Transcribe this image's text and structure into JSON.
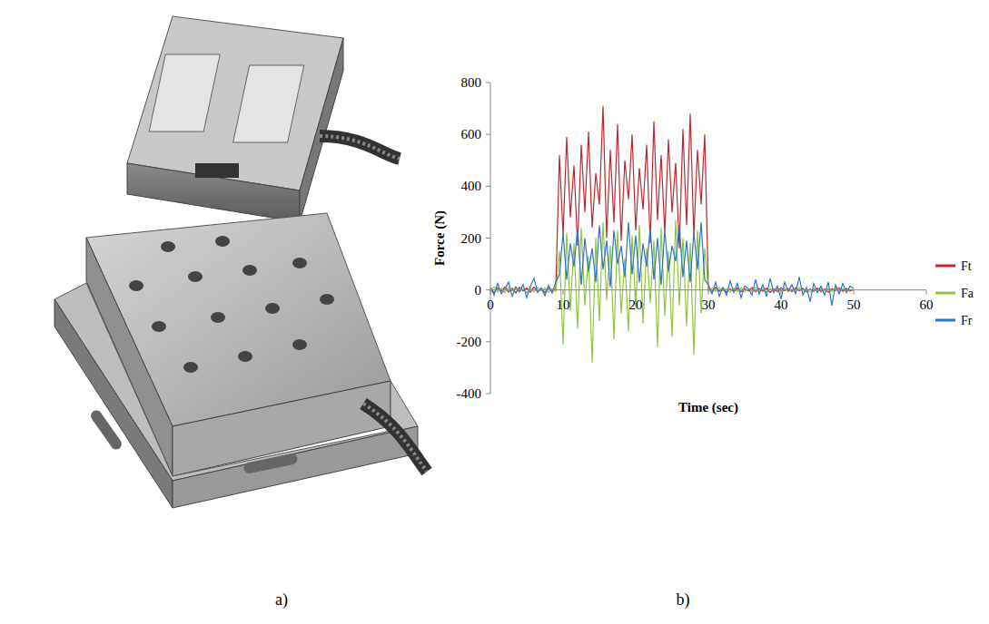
{
  "figure": {
    "panel_labels": [
      "a)",
      "b)"
    ]
  },
  "chart_data": {
    "type": "line",
    "xlabel": "Time (sec)",
    "ylabel": "Force (N)",
    "xlim": [
      0,
      60
    ],
    "ylim": [
      -400,
      800
    ],
    "xticks": [
      0,
      10,
      20,
      30,
      40,
      50,
      60
    ],
    "yticks": [
      -400,
      -200,
      0,
      200,
      400,
      600,
      800
    ],
    "grid": false,
    "legend": "right",
    "x": [
      0,
      0.5,
      1,
      1.5,
      2,
      2.5,
      3,
      3.5,
      4,
      4.5,
      5,
      5.5,
      6,
      6.5,
      7,
      7.5,
      8,
      8.5,
      9,
      9.5,
      10,
      10.5,
      11,
      11.5,
      12,
      12.5,
      13,
      13.5,
      14,
      14.5,
      15,
      15.5,
      16,
      16.5,
      17,
      17.5,
      18,
      18.5,
      19,
      19.5,
      20,
      20.5,
      21,
      21.5,
      22,
      22.5,
      23,
      23.5,
      24,
      24.5,
      25,
      25.5,
      26,
      26.5,
      27,
      27.5,
      28,
      28.5,
      29,
      29.5,
      30,
      30.5,
      31,
      31.5,
      32,
      32.5,
      33,
      33.5,
      34,
      34.5,
      35,
      35.5,
      36,
      36.5,
      37,
      37.5,
      38,
      38.5,
      39,
      39.5,
      40,
      40.5,
      41,
      41.5,
      42,
      42.5,
      43,
      43.5,
      44,
      44.5,
      45,
      45.5,
      46,
      46.5,
      47,
      47.5,
      48,
      48.5,
      49,
      49.5,
      50
    ],
    "series": [
      {
        "name": "Ft",
        "color": "#c0282d",
        "values": [
          5,
          -10,
          8,
          -5,
          12,
          -8,
          6,
          -12,
          10,
          -4,
          7,
          -9,
          11,
          -6,
          4,
          -10,
          9,
          -3,
          6,
          520,
          210,
          590,
          280,
          480,
          170,
          560,
          300,
          610,
          240,
          450,
          330,
          710,
          200,
          540,
          260,
          640,
          190,
          500,
          350,
          600,
          230,
          470,
          310,
          560,
          180,
          650,
          270,
          520,
          220,
          580,
          300,
          490,
          160,
          620,
          250,
          680,
          210,
          540,
          330,
          600,
          6,
          -8,
          10,
          -5,
          7,
          -9,
          4,
          -6,
          8,
          -7,
          5,
          -4,
          9,
          -8,
          6,
          -5,
          7,
          -10,
          4,
          -6,
          8,
          -3,
          5,
          -7,
          9,
          -4,
          6,
          -8,
          3,
          -5,
          7,
          -6,
          4,
          -9,
          5,
          -3,
          8,
          -5,
          6,
          -4,
          2
        ]
      },
      {
        "name": "Fa",
        "color": "#8cc63f",
        "values": [
          -5,
          12,
          -8,
          6,
          -10,
          9,
          -4,
          11,
          -7,
          5,
          -12,
          8,
          -6,
          10,
          -3,
          7,
          -9,
          4,
          -6,
          150,
          -210,
          220,
          -80,
          180,
          -150,
          240,
          -60,
          130,
          -280,
          200,
          -120,
          260,
          -40,
          170,
          -190,
          230,
          -90,
          120,
          -160,
          210,
          -70,
          250,
          -130,
          160,
          -50,
          190,
          -220,
          240,
          -100,
          150,
          -180,
          270,
          -60,
          200,
          -140,
          180,
          -250,
          230,
          -90,
          160,
          -4,
          7,
          -6,
          9,
          -3,
          5,
          -8,
          6,
          -5,
          8,
          -7,
          4,
          -6,
          10,
          -4,
          6,
          -9,
          5,
          -3,
          7,
          -5,
          8,
          -6,
          4,
          -7,
          9,
          -5,
          3,
          -8,
          6,
          -4,
          7,
          -3,
          5,
          -6,
          8,
          -4,
          6,
          -5,
          3,
          -2
        ]
      },
      {
        "name": "Fr",
        "color": "#2e75c6",
        "values": [
          10,
          -20,
          25,
          -15,
          5,
          30,
          -25,
          12,
          -8,
          20,
          -30,
          15,
          45,
          -10,
          8,
          -22,
          18,
          -12,
          30,
          60,
          220,
          40,
          180,
          90,
          240,
          20,
          200,
          70,
          160,
          30,
          250,
          80,
          190,
          10,
          230,
          100,
          170,
          50,
          260,
          60,
          210,
          30,
          180,
          90,
          240,
          40,
          200,
          20,
          230,
          70,
          170,
          110,
          250,
          50,
          190,
          30,
          220,
          80,
          260,
          40,
          20,
          -15,
          30,
          -25,
          10,
          -20,
          35,
          -10,
          25,
          -30,
          15,
          5,
          -20,
          40,
          -15,
          20,
          -25,
          45,
          -10,
          15,
          -35,
          30,
          -5,
          20,
          -15,
          50,
          -20,
          10,
          -45,
          25,
          -10,
          15,
          -20,
          30,
          -60,
          20,
          -15,
          25,
          -10,
          15,
          5
        ]
      }
    ]
  }
}
